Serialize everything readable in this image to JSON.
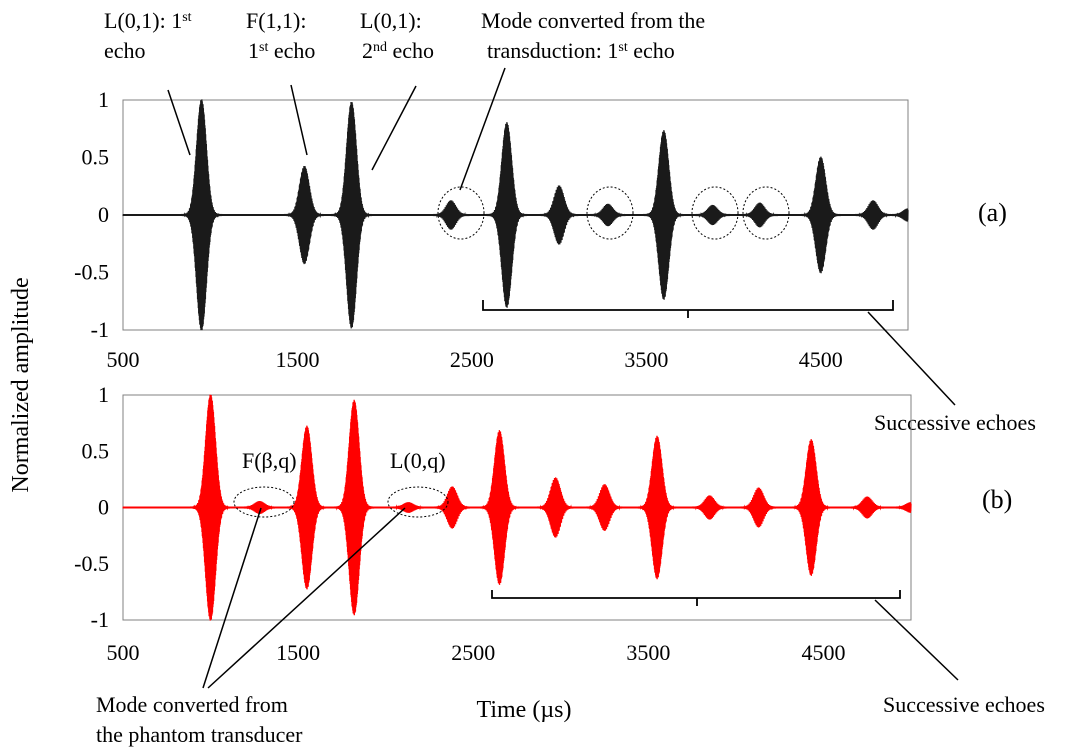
{
  "chart_data": [
    {
      "type": "line",
      "panel_label": "(a)",
      "line_color": "#1a1a1a",
      "xlim": [
        500,
        5000
      ],
      "ylim": [
        -1,
        1
      ],
      "xticks": [
        "500",
        "1500",
        "2500",
        "3500",
        "4500"
      ],
      "yticks": [
        "1",
        "0.5",
        "0",
        "-0.5",
        "-1"
      ],
      "echoes": [
        {
          "t": 950,
          "amp": 1.0
        },
        {
          "t": 1540,
          "amp": 0.42
        },
        {
          "t": 1810,
          "amp": 0.98
        },
        {
          "t": 2380,
          "amp": 0.12
        },
        {
          "t": 2700,
          "amp": 0.8
        },
        {
          "t": 3000,
          "amp": 0.25
        },
        {
          "t": 3280,
          "amp": 0.09
        },
        {
          "t": 3600,
          "amp": 0.73
        },
        {
          "t": 3880,
          "amp": 0.08
        },
        {
          "t": 4150,
          "amp": 0.1
        },
        {
          "t": 4500,
          "amp": 0.5
        },
        {
          "t": 4800,
          "amp": 0.12
        },
        {
          "t": 5000,
          "amp": 0.05
        }
      ],
      "annotations": {
        "l01_first": [
          "L(0,1): 1",
          "st",
          "echo"
        ],
        "f11_first": [
          "F(1,1):",
          "1",
          "st",
          " echo"
        ],
        "l01_second": [
          "L(0,1):",
          "2",
          "nd",
          " echo"
        ],
        "mode_converted": [
          "Mode converted from the",
          "transduction: 1",
          "st",
          " echo"
        ],
        "successive": "Successive echoes"
      }
    },
    {
      "type": "line",
      "panel_label": "(b)",
      "line_color": "#ff0000",
      "xlim": [
        500,
        5000
      ],
      "ylim": [
        -1,
        1
      ],
      "xticks": [
        "500",
        "1500",
        "2500",
        "3500",
        "4500"
      ],
      "yticks": [
        "1",
        "0.5",
        "0",
        "-0.5",
        "-1"
      ],
      "echoes": [
        {
          "t": 1000,
          "amp": 1.0
        },
        {
          "t": 1280,
          "amp": 0.05
        },
        {
          "t": 1550,
          "amp": 0.72
        },
        {
          "t": 1820,
          "amp": 0.95
        },
        {
          "t": 2130,
          "amp": 0.04
        },
        {
          "t": 2380,
          "amp": 0.18
        },
        {
          "t": 2650,
          "amp": 0.68
        },
        {
          "t": 2970,
          "amp": 0.26
        },
        {
          "t": 3250,
          "amp": 0.2
        },
        {
          "t": 3550,
          "amp": 0.63
        },
        {
          "t": 3850,
          "amp": 0.1
        },
        {
          "t": 4130,
          "amp": 0.17
        },
        {
          "t": 4430,
          "amp": 0.6
        },
        {
          "t": 4750,
          "amp": 0.09
        },
        {
          "t": 5000,
          "amp": 0.04
        }
      ],
      "annotations": {
        "f_beta_q": "F(β,q)",
        "l_0_q": "L(0,q)",
        "mode_converted": [
          "Mode converted from",
          "the phantom transducer"
        ],
        "successive": "Successive echoes"
      }
    }
  ],
  "shared": {
    "ylabel": "Normalized amplitude",
    "xlabel": "Time (µs)"
  }
}
